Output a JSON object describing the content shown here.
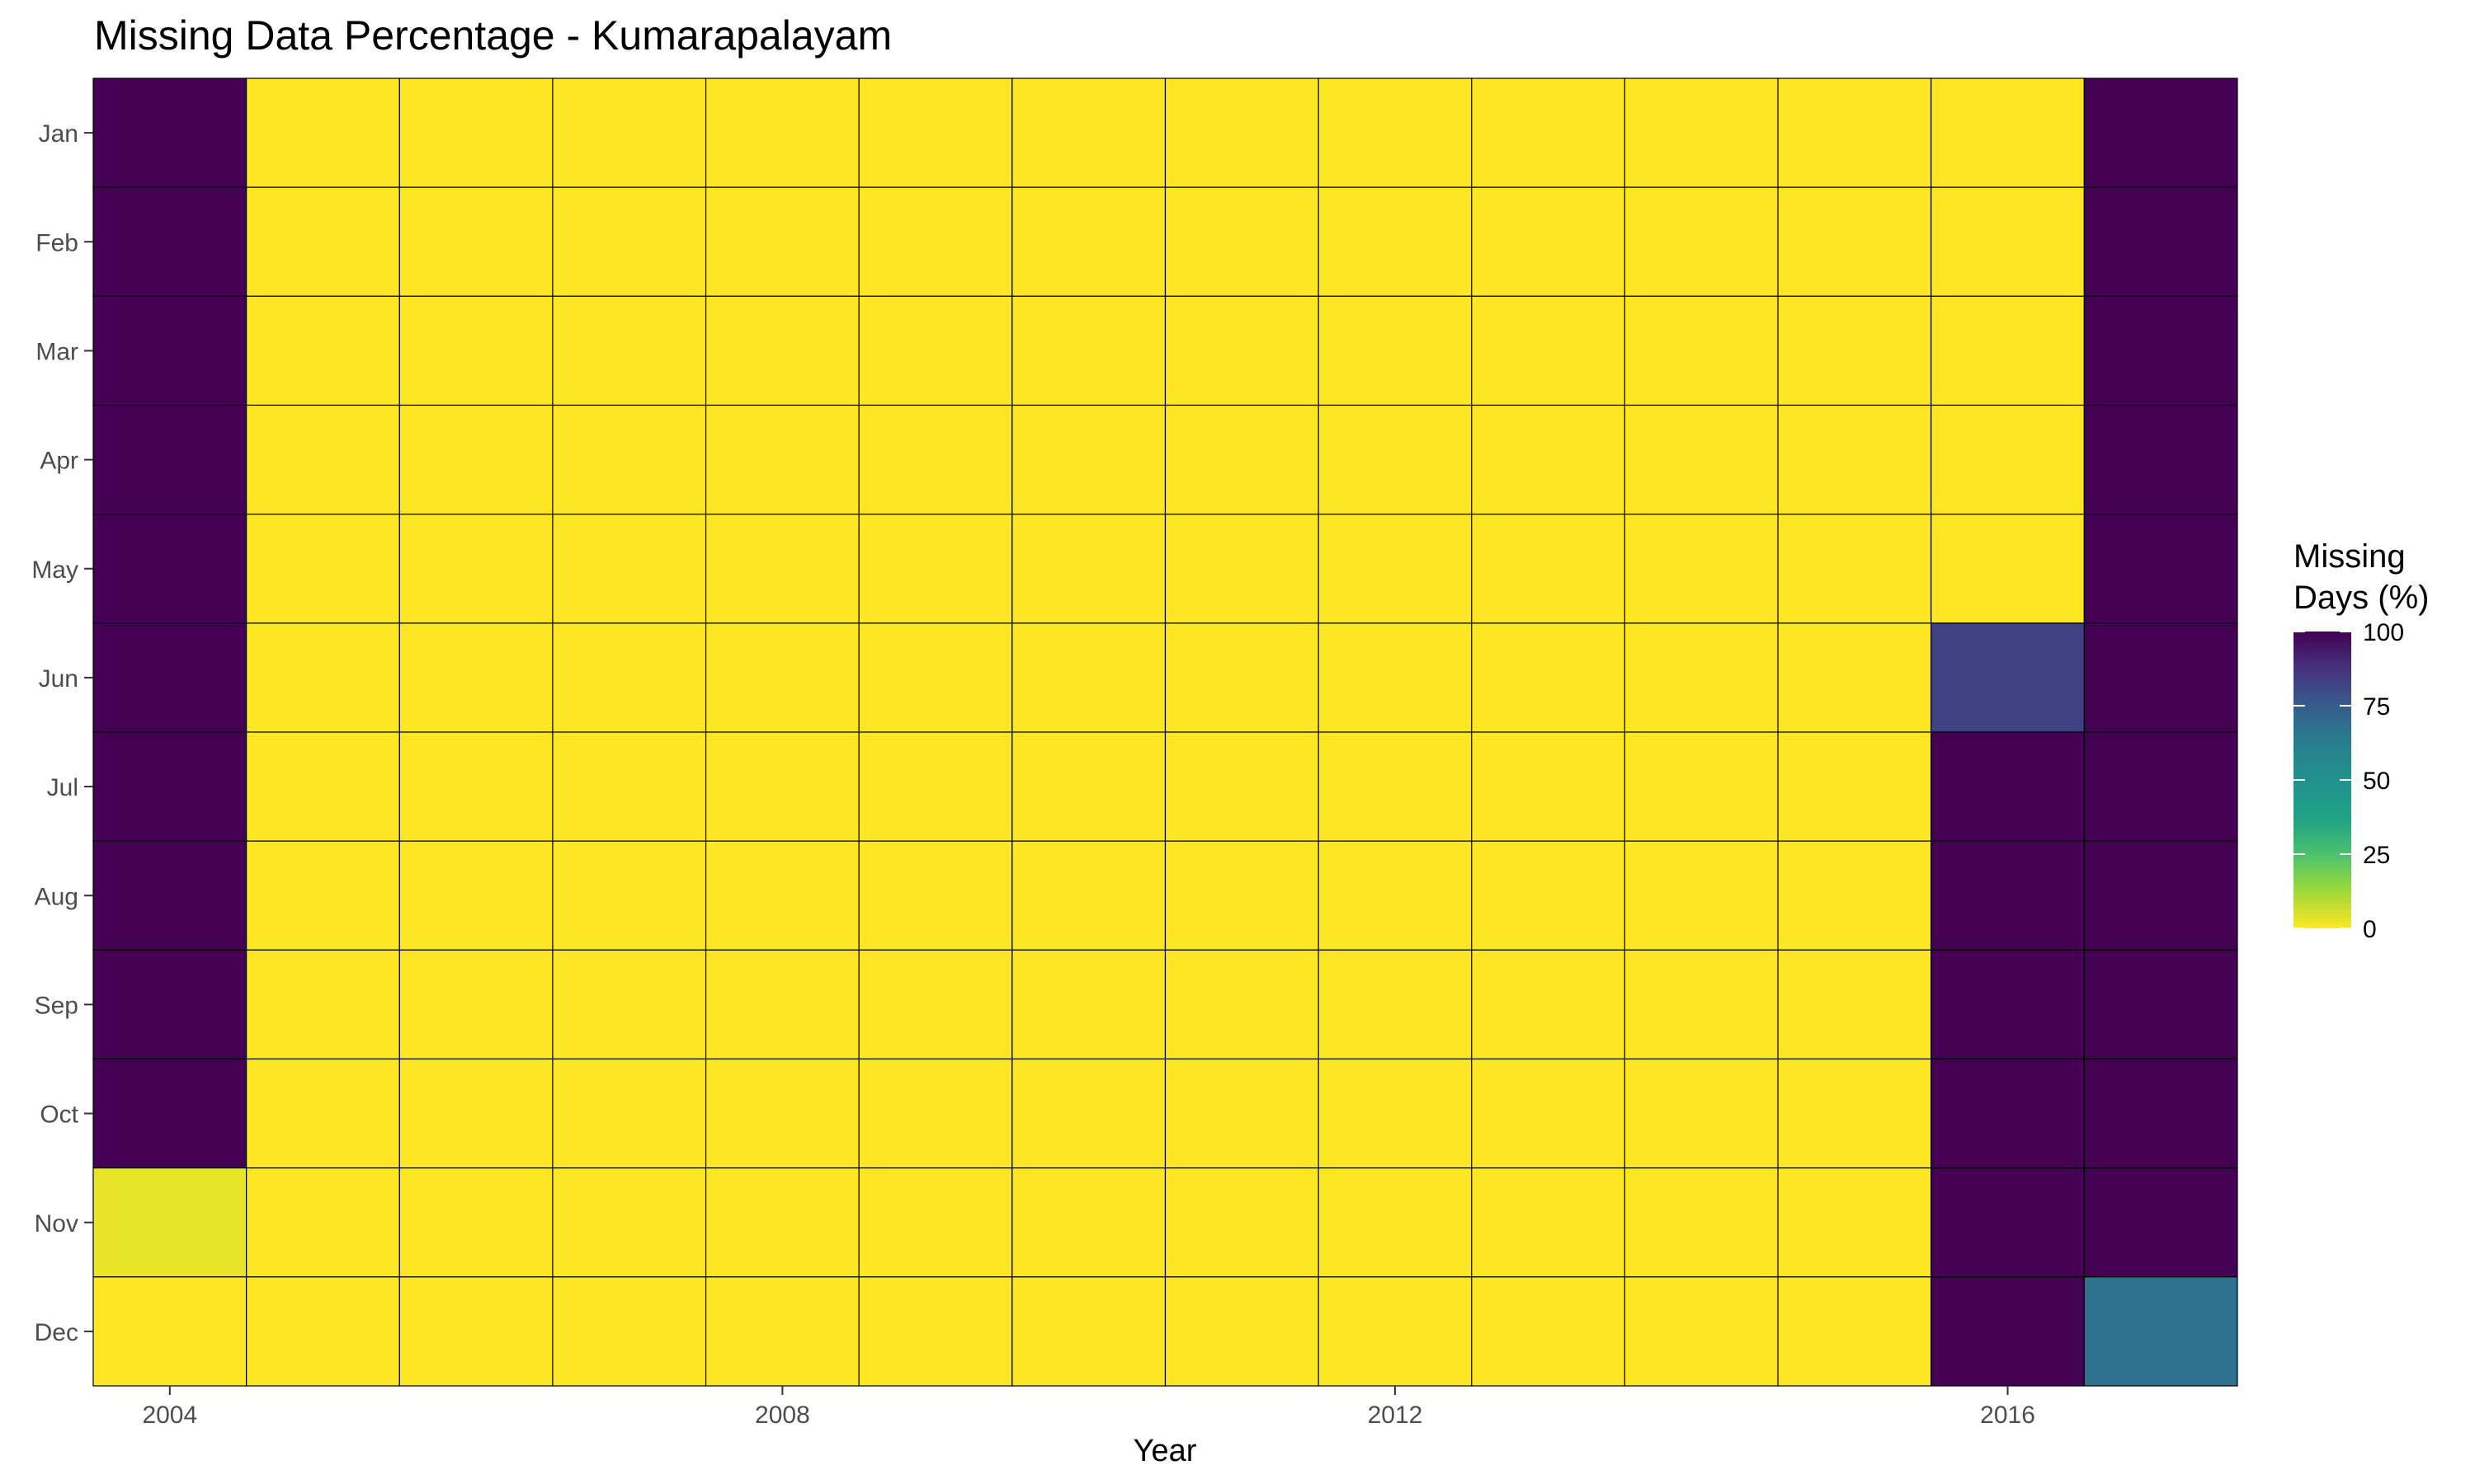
{
  "chart_data": {
    "type": "heatmap",
    "title": "Missing Data Percentage - Kumarapalayam",
    "xlabel": "Year",
    "ylabel": "",
    "x": [
      2004,
      2005,
      2006,
      2007,
      2008,
      2009,
      2010,
      2011,
      2012,
      2013,
      2014,
      2015,
      2016,
      2017
    ],
    "y": [
      "Jan",
      "Feb",
      "Mar",
      "Apr",
      "May",
      "Jun",
      "Jul",
      "Aug",
      "Sep",
      "Oct",
      "Nov",
      "Dec"
    ],
    "x_ticks": [
      2004,
      2008,
      2012,
      2016
    ],
    "values": [
      [
        100,
        0,
        0,
        0,
        0,
        0,
        0,
        0,
        0,
        0,
        0,
        0,
        0,
        100
      ],
      [
        100,
        0,
        0,
        0,
        0,
        0,
        0,
        0,
        0,
        0,
        0,
        0,
        0,
        100
      ],
      [
        100,
        0,
        0,
        0,
        0,
        0,
        0,
        0,
        0,
        0,
        0,
        0,
        0,
        100
      ],
      [
        100,
        0,
        0,
        0,
        0,
        0,
        0,
        0,
        0,
        0,
        0,
        0,
        0,
        100
      ],
      [
        100,
        0,
        0,
        0,
        0,
        0,
        0,
        0,
        0,
        0,
        0,
        0,
        0,
        100
      ],
      [
        100,
        0,
        0,
        0,
        0,
        0,
        0,
        0,
        0,
        0,
        0,
        0,
        83,
        100
      ],
      [
        100,
        0,
        0,
        0,
        0,
        0,
        0,
        0,
        0,
        0,
        0,
        0,
        100,
        100
      ],
      [
        100,
        0,
        0,
        0,
        0,
        0,
        0,
        0,
        0,
        0,
        0,
        0,
        100,
        100
      ],
      [
        100,
        0,
        0,
        0,
        0,
        0,
        0,
        0,
        0,
        0,
        0,
        0,
        100,
        100
      ],
      [
        100,
        0,
        0,
        0,
        0,
        0,
        0,
        0,
        0,
        0,
        0,
        0,
        100,
        100
      ],
      [
        3,
        0,
        0,
        0,
        0,
        0,
        0,
        0,
        0,
        0,
        0,
        0,
        100,
        100
      ],
      [
        0,
        0,
        0,
        0,
        0,
        0,
        0,
        0,
        0,
        0,
        0,
        0,
        100,
        68
      ]
    ],
    "legend": {
      "title_lines": [
        "Missing",
        "Days (%)"
      ],
      "ticks": [
        0,
        25,
        50,
        75,
        100
      ],
      "placement": "right"
    },
    "range": [
      0,
      100
    ],
    "colorscale": "viridis-reversed",
    "grid": false
  }
}
